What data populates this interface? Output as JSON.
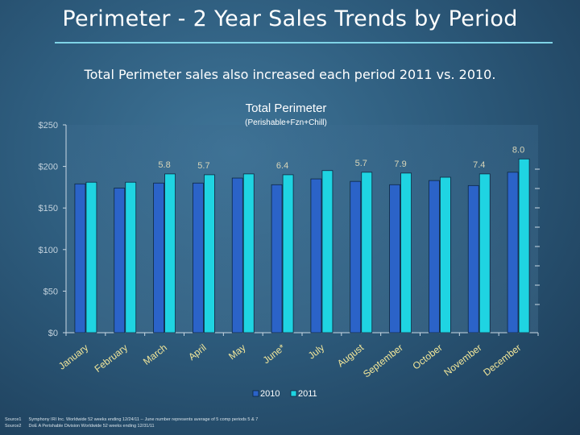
{
  "slide": {
    "title": "Perimeter - 2 Year Sales Trends by Period",
    "subtitle": "Total Perimeter sales also increased each period 2011 vs. 2010."
  },
  "chart_data": {
    "type": "bar",
    "title": "Total Perimeter",
    "subtitle": "(Perishable+Fzn+Chill)",
    "categories": [
      "January",
      "February",
      "March",
      "April",
      "May",
      "June*",
      "July",
      "August",
      "September",
      "October",
      "November",
      "December"
    ],
    "series": [
      {
        "name": "2010",
        "color": "#2b63c8",
        "values": [
          179,
          174,
          180,
          180,
          186,
          178,
          185,
          182,
          178,
          183,
          177,
          193
        ]
      },
      {
        "name": "2011",
        "color": "#1fd4e2",
        "values": [
          181,
          181,
          191,
          190,
          191,
          190,
          195,
          193,
          192,
          187,
          191,
          209
        ]
      }
    ],
    "data_labels": [
      {
        "category": "March",
        "text": "5.8"
      },
      {
        "category": "April",
        "text": "5.7"
      },
      {
        "category": "June*",
        "text": "6.4"
      },
      {
        "category": "August",
        "text": "5.7"
      },
      {
        "category": "September",
        "text": "7.9"
      },
      {
        "category": "November",
        "text": "7.4"
      },
      {
        "category": "December",
        "text": "8.0"
      }
    ],
    "ylim": [
      0,
      250
    ],
    "yticks": [
      0,
      50,
      100,
      150,
      200,
      250
    ],
    "ytick_labels": [
      "$0",
      "$50",
      "$100",
      "$150",
      "$200",
      "$250"
    ],
    "xlabel": "",
    "ylabel": "",
    "legend": "bottom-center",
    "grid": false
  },
  "footnotes": [
    {
      "label": "Source1",
      "text": "Symphony IRI Inc. Worldwide 52 weeks ending 12/24/11 -- June number represents average of 5 comp periods 5 & 7"
    },
    {
      "label": "Source2",
      "text": "DoE A Perishable Division Worldwide 52 weeks ending 12/31/11"
    }
  ],
  "colors": {
    "background": "#2d5b7c",
    "accent_rule": "#7fd3e6",
    "series_2010": "#2b63c8",
    "series_2011": "#1fd4e2"
  }
}
